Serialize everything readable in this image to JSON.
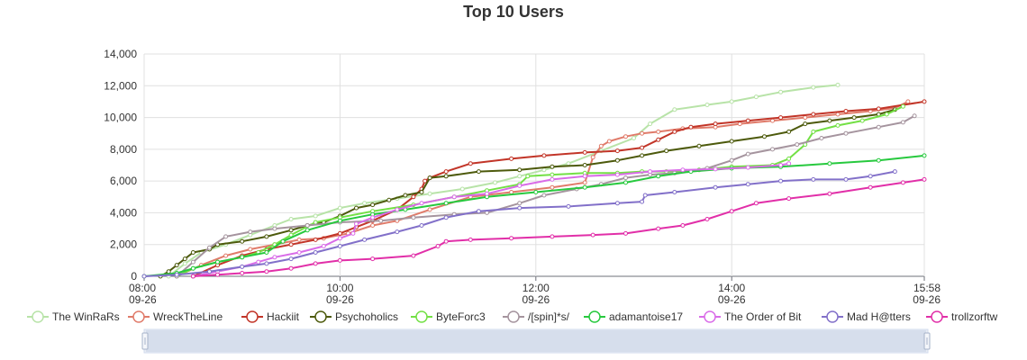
{
  "chart_data": {
    "type": "line",
    "title": "Top 10 Users",
    "xlabel": "",
    "ylabel": "",
    "x_range": [
      "2023-09-26 08:00",
      "2023-09-26 15:58"
    ],
    "ylim": [
      0,
      14000
    ],
    "y_ticks": [
      "0",
      "2,000",
      "4,000",
      "6,000",
      "8,000",
      "10,000",
      "12,000",
      "14,000"
    ],
    "x_ticks": [
      {
        "time": "08:00",
        "date": "09-26"
      },
      {
        "time": "10:00",
        "date": "09-26"
      },
      {
        "time": "12:00",
        "date": "09-26"
      },
      {
        "time": "14:00",
        "date": "09-26"
      },
      {
        "time": "15:58",
        "date": "09-26"
      }
    ],
    "grid": true,
    "legend_position": "bottom",
    "data_zoom": "bottom-slider",
    "series": [
      {
        "name": "The WinRaRs",
        "color": "#b8e3a8",
        "points": [
          [
            "08:15",
            0
          ],
          [
            "08:25",
            800
          ],
          [
            "08:35",
            1500
          ],
          [
            "08:50",
            2000
          ],
          [
            "09:05",
            2600
          ],
          [
            "09:20",
            3200
          ],
          [
            "09:30",
            3600
          ],
          [
            "09:45",
            3800
          ],
          [
            "10:00",
            4300
          ],
          [
            "10:15",
            4600
          ],
          [
            "10:35",
            4900
          ],
          [
            "10:55",
            5200
          ],
          [
            "11:15",
            5500
          ],
          [
            "11:35",
            5900
          ],
          [
            "11:50",
            6300
          ],
          [
            "12:05",
            6700
          ],
          [
            "12:20",
            7100
          ],
          [
            "12:40",
            7900
          ],
          [
            "13:00",
            8700
          ],
          [
            "13:10",
            9600
          ],
          [
            "13:25",
            10500
          ],
          [
            "13:45",
            10800
          ],
          [
            "14:00",
            11000
          ],
          [
            "14:15",
            11300
          ],
          [
            "14:30",
            11600
          ],
          [
            "14:50",
            11900
          ],
          [
            "15:05",
            12050
          ]
        ]
      },
      {
        "name": "WreckTheLine",
        "color": "#e07b6a",
        "points": [
          [
            "08:20",
            0
          ],
          [
            "08:35",
            700
          ],
          [
            "08:50",
            1300
          ],
          [
            "09:05",
            1700
          ],
          [
            "09:20",
            2000
          ],
          [
            "09:35",
            2300
          ],
          [
            "09:50",
            2400
          ],
          [
            "10:05",
            2700
          ],
          [
            "10:20",
            3200
          ],
          [
            "10:35",
            3500
          ],
          [
            "10:55",
            4200
          ],
          [
            "11:20",
            5000
          ],
          [
            "11:45",
            5300
          ],
          [
            "12:10",
            5600
          ],
          [
            "12:30",
            5900
          ],
          [
            "12:35",
            7500
          ],
          [
            "12:40",
            8200
          ],
          [
            "12:45",
            8500
          ],
          [
            "12:55",
            8800
          ],
          [
            "13:05",
            9000
          ],
          [
            "13:15",
            9100
          ],
          [
            "13:30",
            9300
          ],
          [
            "13:50",
            9400
          ],
          [
            "14:05",
            9600
          ],
          [
            "14:25",
            9800
          ],
          [
            "14:45",
            10000
          ],
          [
            "15:05",
            10200
          ],
          [
            "15:25",
            10400
          ],
          [
            "15:40",
            10600
          ],
          [
            "15:48",
            11000
          ]
        ]
      },
      {
        "name": "Hackiit",
        "color": "#c23528",
        "points": [
          [
            "08:30",
            0
          ],
          [
            "08:45",
            700
          ],
          [
            "09:00",
            1300
          ],
          [
            "09:15",
            1700
          ],
          [
            "09:30",
            2000
          ],
          [
            "09:45",
            2300
          ],
          [
            "10:00",
            2700
          ],
          [
            "10:10",
            3100
          ],
          [
            "10:20",
            3500
          ],
          [
            "10:35",
            4200
          ],
          [
            "10:45",
            5000
          ],
          [
            "10:50",
            5500
          ],
          [
            "10:52",
            6000
          ],
          [
            "10:55",
            6200
          ],
          [
            "11:05",
            6600
          ],
          [
            "11:20",
            7100
          ],
          [
            "11:45",
            7400
          ],
          [
            "12:05",
            7600
          ],
          [
            "12:30",
            7800
          ],
          [
            "12:50",
            7900
          ],
          [
            "13:05",
            8100
          ],
          [
            "13:15",
            8600
          ],
          [
            "13:25",
            9100
          ],
          [
            "13:35",
            9400
          ],
          [
            "13:50",
            9600
          ],
          [
            "14:10",
            9800
          ],
          [
            "14:30",
            10000
          ],
          [
            "14:50",
            10200
          ],
          [
            "15:10",
            10400
          ],
          [
            "15:30",
            10550
          ],
          [
            "15:58",
            11000
          ]
        ]
      },
      {
        "name": "Psychoholics",
        "color": "#4d5a0c",
        "points": [
          [
            "08:10",
            0
          ],
          [
            "08:15",
            300
          ],
          [
            "08:20",
            700
          ],
          [
            "08:25",
            1100
          ],
          [
            "08:30",
            1500
          ],
          [
            "08:40",
            1700
          ],
          [
            "08:45",
            2000
          ],
          [
            "09:00",
            2200
          ],
          [
            "09:15",
            2500
          ],
          [
            "09:30",
            2900
          ],
          [
            "09:40",
            3200
          ],
          [
            "09:50",
            3400
          ],
          [
            "10:00",
            3800
          ],
          [
            "10:10",
            4300
          ],
          [
            "10:20",
            4500
          ],
          [
            "10:30",
            4800
          ],
          [
            "10:40",
            5100
          ],
          [
            "10:50",
            5300
          ],
          [
            "10:55",
            6200
          ],
          [
            "11:05",
            6300
          ],
          [
            "11:25",
            6600
          ],
          [
            "11:50",
            6700
          ],
          [
            "12:10",
            6900
          ],
          [
            "12:30",
            7000
          ],
          [
            "12:50",
            7300
          ],
          [
            "13:05",
            7600
          ],
          [
            "13:20",
            7900
          ],
          [
            "13:40",
            8200
          ],
          [
            "14:00",
            8500
          ],
          [
            "14:20",
            8800
          ],
          [
            "14:35",
            9100
          ],
          [
            "14:45",
            9600
          ],
          [
            "15:00",
            9800
          ],
          [
            "15:15",
            10000
          ],
          [
            "15:30",
            10200
          ],
          [
            "15:40",
            10500
          ]
        ]
      },
      {
        "name": "ByteForc3",
        "color": "#73e045",
        "points": [
          [
            "08:20",
            0
          ],
          [
            "08:30",
            500
          ],
          [
            "08:45",
            900
          ],
          [
            "09:00",
            1200
          ],
          [
            "09:10",
            1500
          ],
          [
            "09:20",
            2000
          ],
          [
            "09:30",
            2600
          ],
          [
            "09:45",
            3400
          ],
          [
            "10:00",
            3700
          ],
          [
            "10:20",
            4100
          ],
          [
            "10:45",
            4500
          ],
          [
            "11:10",
            5000
          ],
          [
            "11:30",
            5400
          ],
          [
            "11:50",
            5800
          ],
          [
            "11:55",
            6300
          ],
          [
            "12:10",
            6400
          ],
          [
            "12:30",
            6500
          ],
          [
            "12:50",
            6500
          ],
          [
            "13:05",
            6600
          ],
          [
            "13:20",
            6600
          ],
          [
            "13:40",
            6700
          ],
          [
            "14:00",
            6900
          ],
          [
            "14:25",
            7000
          ],
          [
            "14:35",
            7400
          ],
          [
            "14:45",
            8300
          ],
          [
            "14:50",
            9100
          ],
          [
            "15:05",
            9500
          ],
          [
            "15:20",
            9800
          ],
          [
            "15:35",
            10200
          ],
          [
            "15:45",
            10700
          ]
        ]
      },
      {
        "name": "/[spin]*s/",
        "color": "#a5949e",
        "points": [
          [
            "08:20",
            0
          ],
          [
            "08:30",
            900
          ],
          [
            "08:40",
            1800
          ],
          [
            "08:50",
            2500
          ],
          [
            "09:05",
            2800
          ],
          [
            "09:20",
            3000
          ],
          [
            "09:40",
            3200
          ],
          [
            "10:00",
            3400
          ],
          [
            "10:25",
            3500
          ],
          [
            "10:45",
            3700
          ],
          [
            "11:10",
            3900
          ],
          [
            "11:30",
            4000
          ],
          [
            "11:50",
            4600
          ],
          [
            "12:05",
            5100
          ],
          [
            "12:25",
            5500
          ],
          [
            "12:40",
            5800
          ],
          [
            "12:55",
            6200
          ],
          [
            "13:10",
            6400
          ],
          [
            "13:25",
            6500
          ],
          [
            "13:45",
            6800
          ],
          [
            "14:00",
            7300
          ],
          [
            "14:10",
            7700
          ],
          [
            "14:25",
            8000
          ],
          [
            "14:40",
            8300
          ],
          [
            "14:55",
            8700
          ],
          [
            "15:10",
            9000
          ],
          [
            "15:30",
            9400
          ],
          [
            "15:45",
            9700
          ],
          [
            "15:52",
            10100
          ]
        ]
      },
      {
        "name": "adamantoise17",
        "color": "#27c93e",
        "points": [
          [
            "08:00",
            0
          ],
          [
            "08:20",
            200
          ],
          [
            "08:30",
            500
          ],
          [
            "08:45",
            900
          ],
          [
            "09:00",
            1200
          ],
          [
            "09:15",
            1500
          ],
          [
            "09:25",
            2200
          ],
          [
            "09:40",
            2900
          ],
          [
            "10:00",
            3500
          ],
          [
            "10:20",
            3900
          ],
          [
            "10:40",
            4200
          ],
          [
            "11:05",
            4600
          ],
          [
            "11:30",
            5000
          ],
          [
            "12:00",
            5300
          ],
          [
            "12:30",
            5600
          ],
          [
            "12:55",
            5900
          ],
          [
            "13:15",
            6300
          ],
          [
            "13:35",
            6600
          ],
          [
            "14:00",
            6800
          ],
          [
            "14:30",
            6900
          ],
          [
            "15:00",
            7100
          ],
          [
            "15:30",
            7300
          ],
          [
            "15:58",
            7600
          ]
        ]
      },
      {
        "name": "The Order of Bit",
        "color": "#d96ce8",
        "points": [
          [
            "08:30",
            0
          ],
          [
            "08:45",
            300
          ],
          [
            "09:00",
            600
          ],
          [
            "09:10",
            900
          ],
          [
            "09:20",
            1200
          ],
          [
            "09:35",
            1500
          ],
          [
            "09:50",
            1900
          ],
          [
            "10:00",
            2400
          ],
          [
            "10:08",
            2700
          ],
          [
            "10:10",
            3300
          ],
          [
            "10:20",
            3700
          ],
          [
            "10:35",
            4200
          ],
          [
            "10:50",
            4600
          ],
          [
            "11:10",
            5000
          ],
          [
            "11:30",
            5200
          ],
          [
            "11:50",
            5700
          ],
          [
            "12:10",
            6100
          ],
          [
            "12:30",
            6300
          ],
          [
            "12:50",
            6400
          ],
          [
            "13:10",
            6600
          ],
          [
            "13:30",
            6700
          ],
          [
            "13:50",
            6750
          ],
          [
            "14:10",
            6850
          ],
          [
            "14:30",
            7000
          ],
          [
            "14:35",
            7100
          ]
        ]
      },
      {
        "name": "Mad H@tters",
        "color": "#8270c9",
        "points": [
          [
            "08:00",
            0
          ],
          [
            "08:20",
            100
          ],
          [
            "08:40",
            300
          ],
          [
            "09:00",
            600
          ],
          [
            "09:15",
            800
          ],
          [
            "09:30",
            1100
          ],
          [
            "09:45",
            1500
          ],
          [
            "10:00",
            1900
          ],
          [
            "10:15",
            2300
          ],
          [
            "10:35",
            2800
          ],
          [
            "10:50",
            3200
          ],
          [
            "11:05",
            3700
          ],
          [
            "11:25",
            4100
          ],
          [
            "11:50",
            4300
          ],
          [
            "12:20",
            4400
          ],
          [
            "12:50",
            4600
          ],
          [
            "13:05",
            4700
          ],
          [
            "13:07",
            5100
          ],
          [
            "13:25",
            5300
          ],
          [
            "13:50",
            5600
          ],
          [
            "14:10",
            5800
          ],
          [
            "14:30",
            6000
          ],
          [
            "14:50",
            6100
          ],
          [
            "15:10",
            6100
          ],
          [
            "15:25",
            6300
          ],
          [
            "15:40",
            6600
          ]
        ]
      },
      {
        "name": "trollzorftw",
        "color": "#e12fa8",
        "points": [
          [
            "08:30",
            0
          ],
          [
            "08:45",
            100
          ],
          [
            "09:00",
            200
          ],
          [
            "09:15",
            300
          ],
          [
            "09:30",
            500
          ],
          [
            "09:45",
            800
          ],
          [
            "10:00",
            1000
          ],
          [
            "10:20",
            1100
          ],
          [
            "10:45",
            1300
          ],
          [
            "11:00",
            1900
          ],
          [
            "11:05",
            2200
          ],
          [
            "11:20",
            2300
          ],
          [
            "11:45",
            2400
          ],
          [
            "12:10",
            2500
          ],
          [
            "12:35",
            2600
          ],
          [
            "12:55",
            2700
          ],
          [
            "13:15",
            3000
          ],
          [
            "13:30",
            3200
          ],
          [
            "13:45",
            3600
          ],
          [
            "14:00",
            4100
          ],
          [
            "14:15",
            4600
          ],
          [
            "14:35",
            4900
          ],
          [
            "15:00",
            5200
          ],
          [
            "15:25",
            5600
          ],
          [
            "15:45",
            5900
          ],
          [
            "15:58",
            6100
          ]
        ]
      }
    ]
  }
}
